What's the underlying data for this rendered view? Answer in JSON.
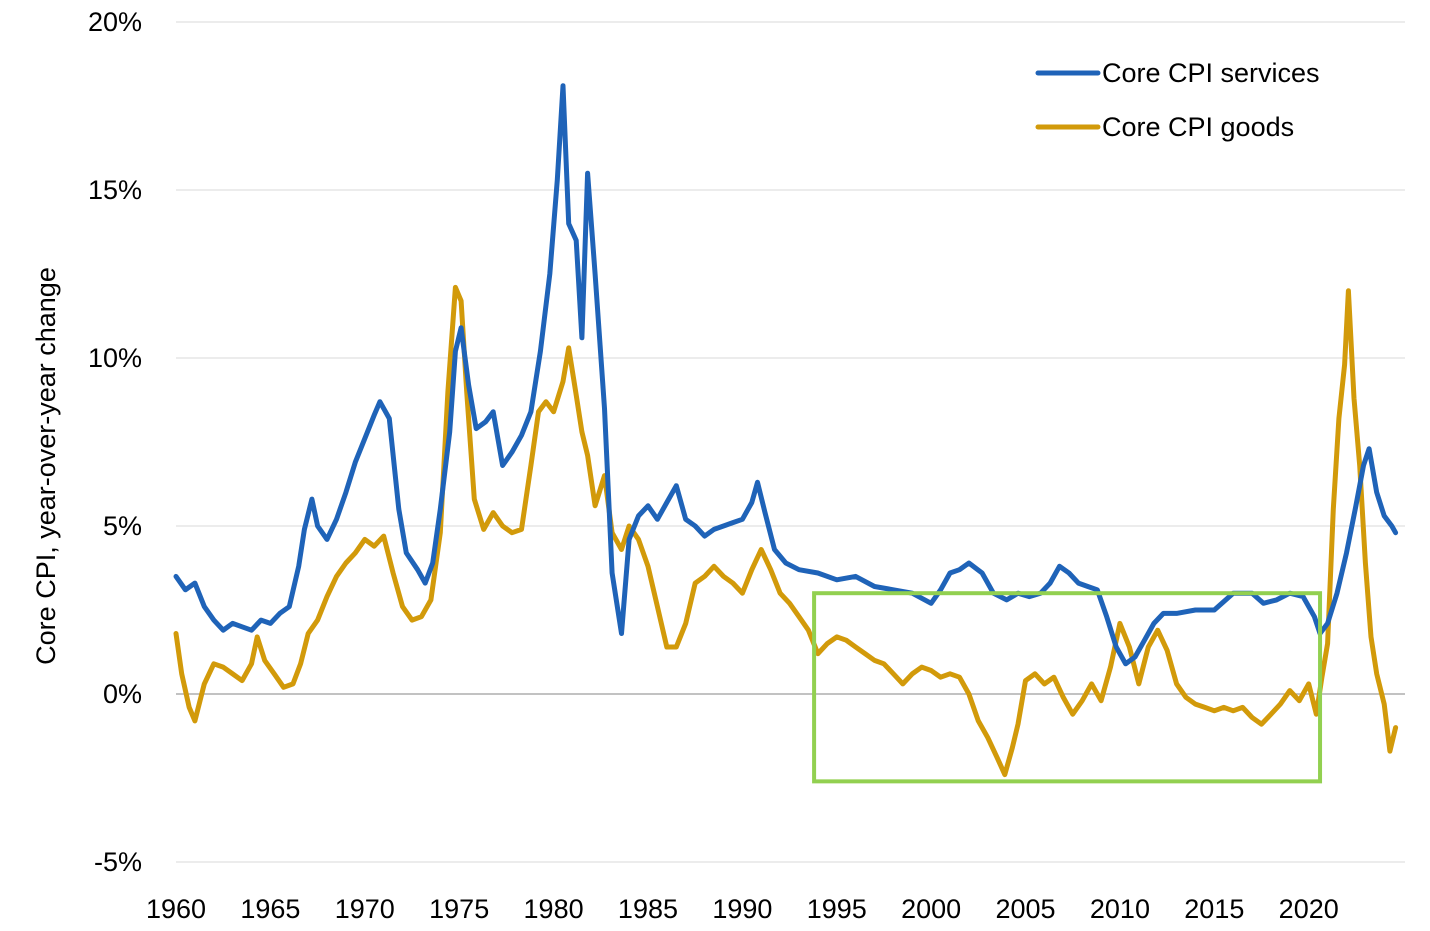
{
  "chart_data": {
    "type": "line",
    "title": "",
    "xlabel": "",
    "ylabel": "Core CPI, year-over-year change",
    "xlim": [
      1960,
      2024.6
    ],
    "ylim": [
      -5,
      20
    ],
    "x_ticks": [
      "1960",
      "1965",
      "1970",
      "1975",
      "1980",
      "1985",
      "1990",
      "1995",
      "2000",
      "2005",
      "2010",
      "2015",
      "2020"
    ],
    "y_ticks": [
      {
        "value": -5,
        "label": "-5%"
      },
      {
        "value": 0,
        "label": "0%"
      },
      {
        "value": 5,
        "label": "5%"
      },
      {
        "value": 10,
        "label": "10%"
      },
      {
        "value": 15,
        "label": "15%"
      },
      {
        "value": 20,
        "label": "20%"
      }
    ],
    "grid": "horizontal",
    "legend_position": "top-right",
    "series": [
      {
        "name": "Core CPI services",
        "color": "#1f63b8",
        "points": [
          [
            1960.0,
            3.5
          ],
          [
            1960.5,
            3.1
          ],
          [
            1961.0,
            3.3
          ],
          [
            1961.5,
            2.6
          ],
          [
            1962.0,
            2.2
          ],
          [
            1962.5,
            1.9
          ],
          [
            1963.0,
            2.1
          ],
          [
            1963.5,
            2.0
          ],
          [
            1964.0,
            1.9
          ],
          [
            1964.5,
            2.2
          ],
          [
            1965.0,
            2.1
          ],
          [
            1965.5,
            2.4
          ],
          [
            1966.0,
            2.6
          ],
          [
            1966.5,
            3.8
          ],
          [
            1966.8,
            4.9
          ],
          [
            1967.2,
            5.8
          ],
          [
            1967.5,
            5.0
          ],
          [
            1968.0,
            4.6
          ],
          [
            1968.5,
            5.2
          ],
          [
            1969.0,
            6.0
          ],
          [
            1969.5,
            6.9
          ],
          [
            1970.0,
            7.6
          ],
          [
            1970.5,
            8.3
          ],
          [
            1970.8,
            8.7
          ],
          [
            1971.3,
            8.2
          ],
          [
            1971.8,
            5.5
          ],
          [
            1972.2,
            4.2
          ],
          [
            1972.8,
            3.7
          ],
          [
            1973.2,
            3.3
          ],
          [
            1973.6,
            3.9
          ],
          [
            1974.0,
            5.5
          ],
          [
            1974.5,
            7.8
          ],
          [
            1974.8,
            10.2
          ],
          [
            1975.1,
            10.9
          ],
          [
            1975.5,
            9.2
          ],
          [
            1975.9,
            7.9
          ],
          [
            1976.4,
            8.1
          ],
          [
            1976.8,
            8.4
          ],
          [
            1977.3,
            6.8
          ],
          [
            1977.8,
            7.2
          ],
          [
            1978.3,
            7.7
          ],
          [
            1978.8,
            8.4
          ],
          [
            1979.3,
            10.2
          ],
          [
            1979.8,
            12.5
          ],
          [
            1980.2,
            15.3
          ],
          [
            1980.5,
            18.1
          ],
          [
            1980.8,
            14.0
          ],
          [
            1981.2,
            13.5
          ],
          [
            1981.5,
            10.6
          ],
          [
            1981.8,
            15.5
          ],
          [
            1982.2,
            12.5
          ],
          [
            1982.7,
            8.5
          ],
          [
            1983.1,
            3.6
          ],
          [
            1983.6,
            1.8
          ],
          [
            1984.0,
            4.6
          ],
          [
            1984.5,
            5.3
          ],
          [
            1985.0,
            5.6
          ],
          [
            1985.5,
            5.2
          ],
          [
            1986.0,
            5.7
          ],
          [
            1986.5,
            6.2
          ],
          [
            1987.0,
            5.2
          ],
          [
            1987.5,
            5.0
          ],
          [
            1988.0,
            4.7
          ],
          [
            1988.5,
            4.9
          ],
          [
            1989.0,
            5.0
          ],
          [
            1989.5,
            5.1
          ],
          [
            1990.0,
            5.2
          ],
          [
            1990.5,
            5.7
          ],
          [
            1990.8,
            6.3
          ],
          [
            1991.2,
            5.4
          ],
          [
            1991.7,
            4.3
          ],
          [
            1992.3,
            3.9
          ],
          [
            1993.0,
            3.7
          ],
          [
            1994.0,
            3.6
          ],
          [
            1995.0,
            3.4
          ],
          [
            1996.0,
            3.5
          ],
          [
            1997.0,
            3.2
          ],
          [
            1998.0,
            3.1
          ],
          [
            1999.0,
            3.0
          ],
          [
            2000.0,
            2.7
          ],
          [
            2000.5,
            3.1
          ],
          [
            2001.0,
            3.6
          ],
          [
            2001.5,
            3.7
          ],
          [
            2002.0,
            3.9
          ],
          [
            2002.7,
            3.6
          ],
          [
            2003.3,
            3.0
          ],
          [
            2004.0,
            2.8
          ],
          [
            2004.6,
            3.0
          ],
          [
            2005.2,
            2.9
          ],
          [
            2005.8,
            3.0
          ],
          [
            2006.3,
            3.3
          ],
          [
            2006.8,
            3.8
          ],
          [
            2007.3,
            3.6
          ],
          [
            2007.8,
            3.3
          ],
          [
            2008.3,
            3.2
          ],
          [
            2008.8,
            3.1
          ],
          [
            2009.3,
            2.3
          ],
          [
            2009.8,
            1.4
          ],
          [
            2010.3,
            0.9
          ],
          [
            2010.8,
            1.1
          ],
          [
            2011.3,
            1.6
          ],
          [
            2011.8,
            2.1
          ],
          [
            2012.3,
            2.4
          ],
          [
            2013.0,
            2.4
          ],
          [
            2014.0,
            2.5
          ],
          [
            2015.0,
            2.5
          ],
          [
            2016.0,
            3.0
          ],
          [
            2017.0,
            3.0
          ],
          [
            2017.6,
            2.7
          ],
          [
            2018.3,
            2.8
          ],
          [
            2019.0,
            3.0
          ],
          [
            2019.7,
            2.9
          ],
          [
            2020.3,
            2.3
          ],
          [
            2020.6,
            1.8
          ],
          [
            2021.0,
            2.1
          ],
          [
            2021.5,
            3.0
          ],
          [
            2022.0,
            4.2
          ],
          [
            2022.5,
            5.6
          ],
          [
            2022.9,
            6.8
          ],
          [
            2023.2,
            7.3
          ],
          [
            2023.6,
            6.0
          ],
          [
            2024.0,
            5.3
          ],
          [
            2024.4,
            5.0
          ],
          [
            2024.6,
            4.8
          ]
        ]
      },
      {
        "name": "Core CPI goods",
        "color": "#d29a0a",
        "points": [
          [
            1960.0,
            1.8
          ],
          [
            1960.3,
            0.6
          ],
          [
            1960.7,
            -0.4
          ],
          [
            1961.0,
            -0.8
          ],
          [
            1961.5,
            0.3
          ],
          [
            1962.0,
            0.9
          ],
          [
            1962.5,
            0.8
          ],
          [
            1963.0,
            0.6
          ],
          [
            1963.5,
            0.4
          ],
          [
            1964.0,
            0.9
          ],
          [
            1964.3,
            1.7
          ],
          [
            1964.7,
            1.0
          ],
          [
            1965.2,
            0.6
          ],
          [
            1965.7,
            0.2
          ],
          [
            1966.2,
            0.3
          ],
          [
            1966.6,
            0.9
          ],
          [
            1967.0,
            1.8
          ],
          [
            1967.5,
            2.2
          ],
          [
            1968.0,
            2.9
          ],
          [
            1968.5,
            3.5
          ],
          [
            1969.0,
            3.9
          ],
          [
            1969.5,
            4.2
          ],
          [
            1970.0,
            4.6
          ],
          [
            1970.5,
            4.4
          ],
          [
            1971.0,
            4.7
          ],
          [
            1971.5,
            3.6
          ],
          [
            1972.0,
            2.6
          ],
          [
            1972.5,
            2.2
          ],
          [
            1973.0,
            2.3
          ],
          [
            1973.5,
            2.8
          ],
          [
            1974.0,
            4.8
          ],
          [
            1974.4,
            9.0
          ],
          [
            1974.8,
            12.1
          ],
          [
            1975.1,
            11.7
          ],
          [
            1975.4,
            9.0
          ],
          [
            1975.8,
            5.8
          ],
          [
            1976.3,
            4.9
          ],
          [
            1976.8,
            5.4
          ],
          [
            1977.3,
            5.0
          ],
          [
            1977.8,
            4.8
          ],
          [
            1978.3,
            4.9
          ],
          [
            1978.8,
            6.8
          ],
          [
            1979.2,
            8.4
          ],
          [
            1979.6,
            8.7
          ],
          [
            1980.0,
            8.4
          ],
          [
            1980.5,
            9.3
          ],
          [
            1980.8,
            10.3
          ],
          [
            1981.2,
            8.9
          ],
          [
            1981.5,
            7.8
          ],
          [
            1981.8,
            7.1
          ],
          [
            1982.2,
            5.6
          ],
          [
            1982.7,
            6.5
          ],
          [
            1983.1,
            4.8
          ],
          [
            1983.6,
            4.3
          ],
          [
            1984.0,
            5.0
          ],
          [
            1984.5,
            4.6
          ],
          [
            1985.0,
            3.8
          ],
          [
            1985.5,
            2.6
          ],
          [
            1986.0,
            1.4
          ],
          [
            1986.5,
            1.4
          ],
          [
            1987.0,
            2.1
          ],
          [
            1987.5,
            3.3
          ],
          [
            1988.0,
            3.5
          ],
          [
            1988.5,
            3.8
          ],
          [
            1989.0,
            3.5
          ],
          [
            1989.5,
            3.3
          ],
          [
            1990.0,
            3.0
          ],
          [
            1990.5,
            3.7
          ],
          [
            1991.0,
            4.3
          ],
          [
            1991.5,
            3.7
          ],
          [
            1992.0,
            3.0
          ],
          [
            1992.5,
            2.7
          ],
          [
            1993.0,
            2.3
          ],
          [
            1993.5,
            1.9
          ],
          [
            1994.0,
            1.2
          ],
          [
            1994.5,
            1.5
          ],
          [
            1995.0,
            1.7
          ],
          [
            1995.5,
            1.6
          ],
          [
            1996.0,
            1.4
          ],
          [
            1996.5,
            1.2
          ],
          [
            1997.0,
            1.0
          ],
          [
            1997.5,
            0.9
          ],
          [
            1998.0,
            0.6
          ],
          [
            1998.5,
            0.3
          ],
          [
            1999.0,
            0.6
          ],
          [
            1999.5,
            0.8
          ],
          [
            2000.0,
            0.7
          ],
          [
            2000.5,
            0.5
          ],
          [
            2001.0,
            0.6
          ],
          [
            2001.5,
            0.5
          ],
          [
            2002.0,
            0.0
          ],
          [
            2002.5,
            -0.8
          ],
          [
            2003.0,
            -1.3
          ],
          [
            2003.5,
            -1.9
          ],
          [
            2003.9,
            -2.4
          ],
          [
            2004.3,
            -1.6
          ],
          [
            2004.6,
            -0.9
          ],
          [
            2005.0,
            0.4
          ],
          [
            2005.5,
            0.6
          ],
          [
            2006.0,
            0.3
          ],
          [
            2006.5,
            0.5
          ],
          [
            2007.0,
            -0.1
          ],
          [
            2007.5,
            -0.6
          ],
          [
            2008.0,
            -0.2
          ],
          [
            2008.5,
            0.3
          ],
          [
            2009.0,
            -0.2
          ],
          [
            2009.5,
            0.8
          ],
          [
            2010.0,
            2.1
          ],
          [
            2010.5,
            1.4
          ],
          [
            2011.0,
            0.3
          ],
          [
            2011.5,
            1.4
          ],
          [
            2012.0,
            1.9
          ],
          [
            2012.5,
            1.3
          ],
          [
            2013.0,
            0.3
          ],
          [
            2013.5,
            -0.1
          ],
          [
            2014.0,
            -0.3
          ],
          [
            2014.5,
            -0.4
          ],
          [
            2015.0,
            -0.5
          ],
          [
            2015.5,
            -0.4
          ],
          [
            2016.0,
            -0.5
          ],
          [
            2016.5,
            -0.4
          ],
          [
            2017.0,
            -0.7
          ],
          [
            2017.5,
            -0.9
          ],
          [
            2018.0,
            -0.6
          ],
          [
            2018.5,
            -0.3
          ],
          [
            2019.0,
            0.1
          ],
          [
            2019.5,
            -0.2
          ],
          [
            2020.0,
            0.3
          ],
          [
            2020.4,
            -0.6
          ],
          [
            2020.7,
            0.5
          ],
          [
            2021.0,
            1.5
          ],
          [
            2021.3,
            5.5
          ],
          [
            2021.6,
            8.2
          ],
          [
            2021.9,
            9.8
          ],
          [
            2022.1,
            12.0
          ],
          [
            2022.4,
            8.8
          ],
          [
            2022.7,
            6.8
          ],
          [
            2023.0,
            3.9
          ],
          [
            2023.3,
            1.7
          ],
          [
            2023.6,
            0.6
          ],
          [
            2024.0,
            -0.3
          ],
          [
            2024.3,
            -1.7
          ],
          [
            2024.6,
            -1.0
          ]
        ]
      }
    ],
    "annotation": {
      "type": "rectangle",
      "color": "#92d050",
      "x_range": [
        1993.8,
        2020.6
      ],
      "y_range": [
        -2.6,
        3.0
      ]
    }
  }
}
